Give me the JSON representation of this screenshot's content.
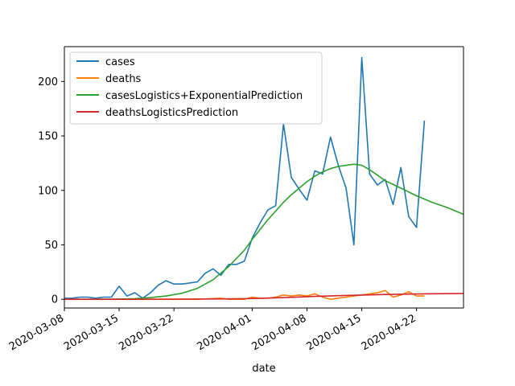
{
  "chart_data": {
    "type": "line",
    "xlabel": "date",
    "ylabel": "",
    "x_range": [
      "2020-03-08",
      "2020-04-28"
    ],
    "ylim": [
      -8,
      232
    ],
    "x_ticks": [
      "2020-03-08",
      "2020-03-15",
      "2020-03-22",
      "2020-04-01",
      "2020-04-08",
      "2020-04-15",
      "2020-04-22"
    ],
    "y_ticks": [
      0,
      50,
      100,
      150,
      200
    ],
    "grid": false,
    "legend_position": "top-left",
    "series": [
      {
        "name": "cases",
        "color": "#1f77b4",
        "x": [
          "2020-03-08",
          "2020-03-09",
          "2020-03-10",
          "2020-03-11",
          "2020-03-12",
          "2020-03-13",
          "2020-03-14",
          "2020-03-15",
          "2020-03-16",
          "2020-03-17",
          "2020-03-18",
          "2020-03-19",
          "2020-03-20",
          "2020-03-21",
          "2020-03-22",
          "2020-03-23",
          "2020-03-24",
          "2020-03-25",
          "2020-03-26",
          "2020-03-27",
          "2020-03-28",
          "2020-03-29",
          "2020-03-30",
          "2020-03-31",
          "2020-04-01",
          "2020-04-02",
          "2020-04-03",
          "2020-04-04",
          "2020-04-05",
          "2020-04-06",
          "2020-04-07",
          "2020-04-08",
          "2020-04-09",
          "2020-04-10",
          "2020-04-11",
          "2020-04-12",
          "2020-04-13",
          "2020-04-14",
          "2020-04-15",
          "2020-04-16",
          "2020-04-17",
          "2020-04-18",
          "2020-04-19",
          "2020-04-20",
          "2020-04-21",
          "2020-04-22",
          "2020-04-23"
        ],
        "values": [
          1,
          1,
          2,
          2,
          1,
          2,
          2,
          12,
          3,
          6,
          1,
          6,
          13,
          17,
          14,
          14,
          15,
          16,
          24,
          28,
          22,
          32,
          32,
          35,
          56,
          70,
          82,
          86,
          161,
          112,
          101,
          91,
          118,
          115,
          149,
          123,
          102,
          50,
          222,
          115,
          105,
          110,
          87,
          121,
          76,
          66,
          164
        ]
      },
      {
        "name": "deaths",
        "color": "#ff7f0e",
        "x": [
          "2020-03-08",
          "2020-03-11",
          "2020-03-15",
          "2020-03-20",
          "2020-03-25",
          "2020-03-28",
          "2020-03-29",
          "2020-03-31",
          "2020-04-01",
          "2020-04-02",
          "2020-04-03",
          "2020-04-04",
          "2020-04-05",
          "2020-04-06",
          "2020-04-07",
          "2020-04-08",
          "2020-04-09",
          "2020-04-10",
          "2020-04-11",
          "2020-04-12",
          "2020-04-13",
          "2020-04-14",
          "2020-04-15",
          "2020-04-16",
          "2020-04-17",
          "2020-04-18",
          "2020-04-19",
          "2020-04-20",
          "2020-04-21",
          "2020-04-22",
          "2020-04-23"
        ],
        "values": [
          0,
          0,
          0,
          0,
          0,
          1,
          0,
          0,
          2,
          1,
          1,
          2,
          4,
          3,
          4,
          3,
          5,
          2,
          0,
          1,
          2,
          3,
          4,
          5,
          6,
          8,
          2,
          4,
          7,
          3,
          3
        ]
      },
      {
        "name": "casesLogistics+ExponentialPrediction",
        "color": "#2ca02c",
        "x": [
          "2020-03-08",
          "2020-03-12",
          "2020-03-15",
          "2020-03-17",
          "2020-03-19",
          "2020-03-21",
          "2020-03-23",
          "2020-03-25",
          "2020-03-27",
          "2020-03-29",
          "2020-03-31",
          "2020-04-01",
          "2020-04-02",
          "2020-04-03",
          "2020-04-04",
          "2020-04-05",
          "2020-04-06",
          "2020-04-07",
          "2020-04-08",
          "2020-04-09",
          "2020-04-10",
          "2020-04-11",
          "2020-04-12",
          "2020-04-13",
          "2020-04-14",
          "2020-04-15",
          "2020-04-16",
          "2020-04-17",
          "2020-04-18",
          "2020-04-20",
          "2020-04-22",
          "2020-04-24",
          "2020-04-26",
          "2020-04-28"
        ],
        "values": [
          0,
          0,
          0.2,
          0.6,
          1.5,
          3,
          5.5,
          10,
          18,
          30,
          45,
          55,
          64,
          73,
          81,
          89,
          96,
          102,
          108,
          113,
          117,
          120,
          122,
          123,
          124,
          123,
          119,
          114,
          109,
          102,
          95,
          89,
          84,
          78
        ]
      },
      {
        "name": "deathsLogisticsPrediction",
        "color": "#d62728",
        "x": [
          "2020-03-08",
          "2020-03-15",
          "2020-03-22",
          "2020-03-27",
          "2020-03-31",
          "2020-04-03",
          "2020-04-06",
          "2020-04-09",
          "2020-04-12",
          "2020-04-15",
          "2020-04-18",
          "2020-04-21",
          "2020-04-24",
          "2020-04-28"
        ],
        "values": [
          0,
          0,
          0.1,
          0.3,
          0.6,
          1.1,
          1.8,
          2.6,
          3.3,
          3.9,
          4.4,
          4.8,
          5.1,
          5.4
        ]
      }
    ]
  }
}
